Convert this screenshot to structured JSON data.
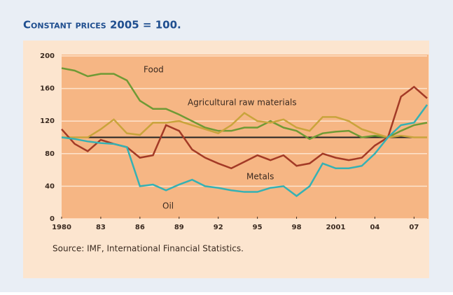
{
  "chart_data": {
    "type": "line",
    "title": "Constant prices 2005 = 100.",
    "source": "Source: IMF, International Financial Statistics.",
    "x": [
      1980,
      1981,
      1982,
      1983,
      1984,
      1985,
      1986,
      1987,
      1988,
      1989,
      1990,
      1991,
      1992,
      1993,
      1994,
      1995,
      1996,
      1997,
      1998,
      1999,
      2000,
      2001,
      2002,
      2003,
      2004,
      2005,
      2006,
      2007,
      2008
    ],
    "series": [
      {
        "name": "Food",
        "color": "#6f9a35",
        "values": [
          185,
          182,
          175,
          178,
          178,
          170,
          145,
          135,
          135,
          128,
          120,
          112,
          108,
          108,
          112,
          112,
          120,
          112,
          108,
          98,
          105,
          107,
          108,
          100,
          102,
          100,
          108,
          115,
          118
        ]
      },
      {
        "name": "Agricultural raw materials",
        "color": "#c9a43c",
        "values": [
          100,
          100,
          100,
          110,
          122,
          105,
          103,
          118,
          118,
          120,
          115,
          110,
          105,
          115,
          130,
          120,
          118,
          122,
          112,
          108,
          125,
          125,
          120,
          110,
          105,
          100,
          102,
          100,
          100
        ]
      },
      {
        "name": "Metals",
        "color": "#a33a26",
        "values": [
          110,
          92,
          83,
          97,
          92,
          88,
          75,
          78,
          115,
          108,
          85,
          75,
          68,
          62,
          70,
          78,
          72,
          78,
          65,
          68,
          80,
          75,
          72,
          75,
          90,
          100,
          150,
          162,
          148
        ]
      },
      {
        "name": "Oil",
        "color": "#35b1b4",
        "values": [
          100,
          98,
          95,
          93,
          92,
          88,
          40,
          42,
          35,
          42,
          48,
          40,
          38,
          35,
          33,
          33,
          38,
          40,
          28,
          40,
          68,
          62,
          62,
          65,
          80,
          100,
          115,
          118,
          140
        ]
      }
    ],
    "xlim": [
      1980,
      2008
    ],
    "xticks": [
      1980,
      {
        "value": 1983,
        "label": "83"
      },
      {
        "value": 1986,
        "label": "86"
      },
      {
        "value": 1989,
        "label": "89"
      },
      {
        "value": 1992,
        "label": "92"
      },
      {
        "value": 1995,
        "label": "95"
      },
      {
        "value": 1998,
        "label": "98"
      },
      2001,
      {
        "value": 2004,
        "label": "04"
      },
      {
        "value": 2007,
        "label": "07"
      }
    ],
    "ylim": [
      0,
      200
    ],
    "yticks": [
      0,
      40,
      80,
      120,
      160,
      200
    ],
    "grid": true,
    "reference_line": 100
  }
}
